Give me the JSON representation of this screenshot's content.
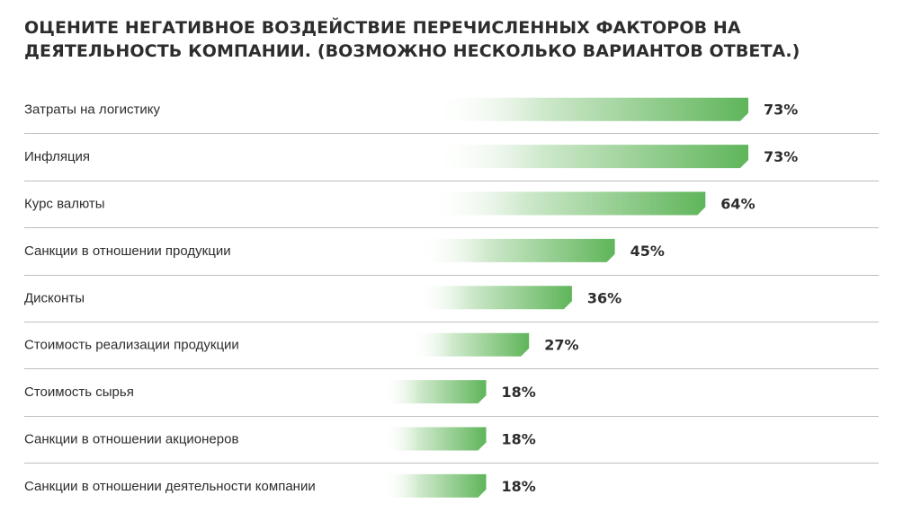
{
  "chart_data": {
    "type": "bar",
    "title": "ОЦЕНИТЕ НЕГАТИВНОЕ ВОЗДЕЙСТВИЕ ПЕРЕЧИСЛЕННЫХ ФАКТОРОВ НА ДЕЯТЕЛЬНОСТЬ КОМПАНИИ. (ВОЗМОЖНО НЕСКОЛЬКО ВАРИАНТОВ ОТВЕТА.)",
    "orientation": "horizontal",
    "categories": [
      "Затраты на логистику",
      "Инфляция",
      "Курс валюты",
      "Санкции в отношении продукции",
      "Дисконты",
      "Стоимость реализации продукции",
      "Стоимость сырья",
      "Санкции в отношении акционеров",
      "Санкции в отношении деятельности компании"
    ],
    "values": [
      73,
      73,
      64,
      45,
      36,
      27,
      18,
      18,
      18
    ],
    "value_labels": [
      "73%",
      "73%",
      "64%",
      "45%",
      "36%",
      "27%",
      "18%",
      "18%",
      "18%"
    ],
    "unit": "%",
    "xlim": [
      0,
      100
    ],
    "grid": false,
    "legend": "none",
    "colors": {
      "bar_end": "#5fb55a",
      "bar_start": "#ffffff",
      "divider": "#bdbdbd",
      "text": "#2d2d2d"
    }
  }
}
